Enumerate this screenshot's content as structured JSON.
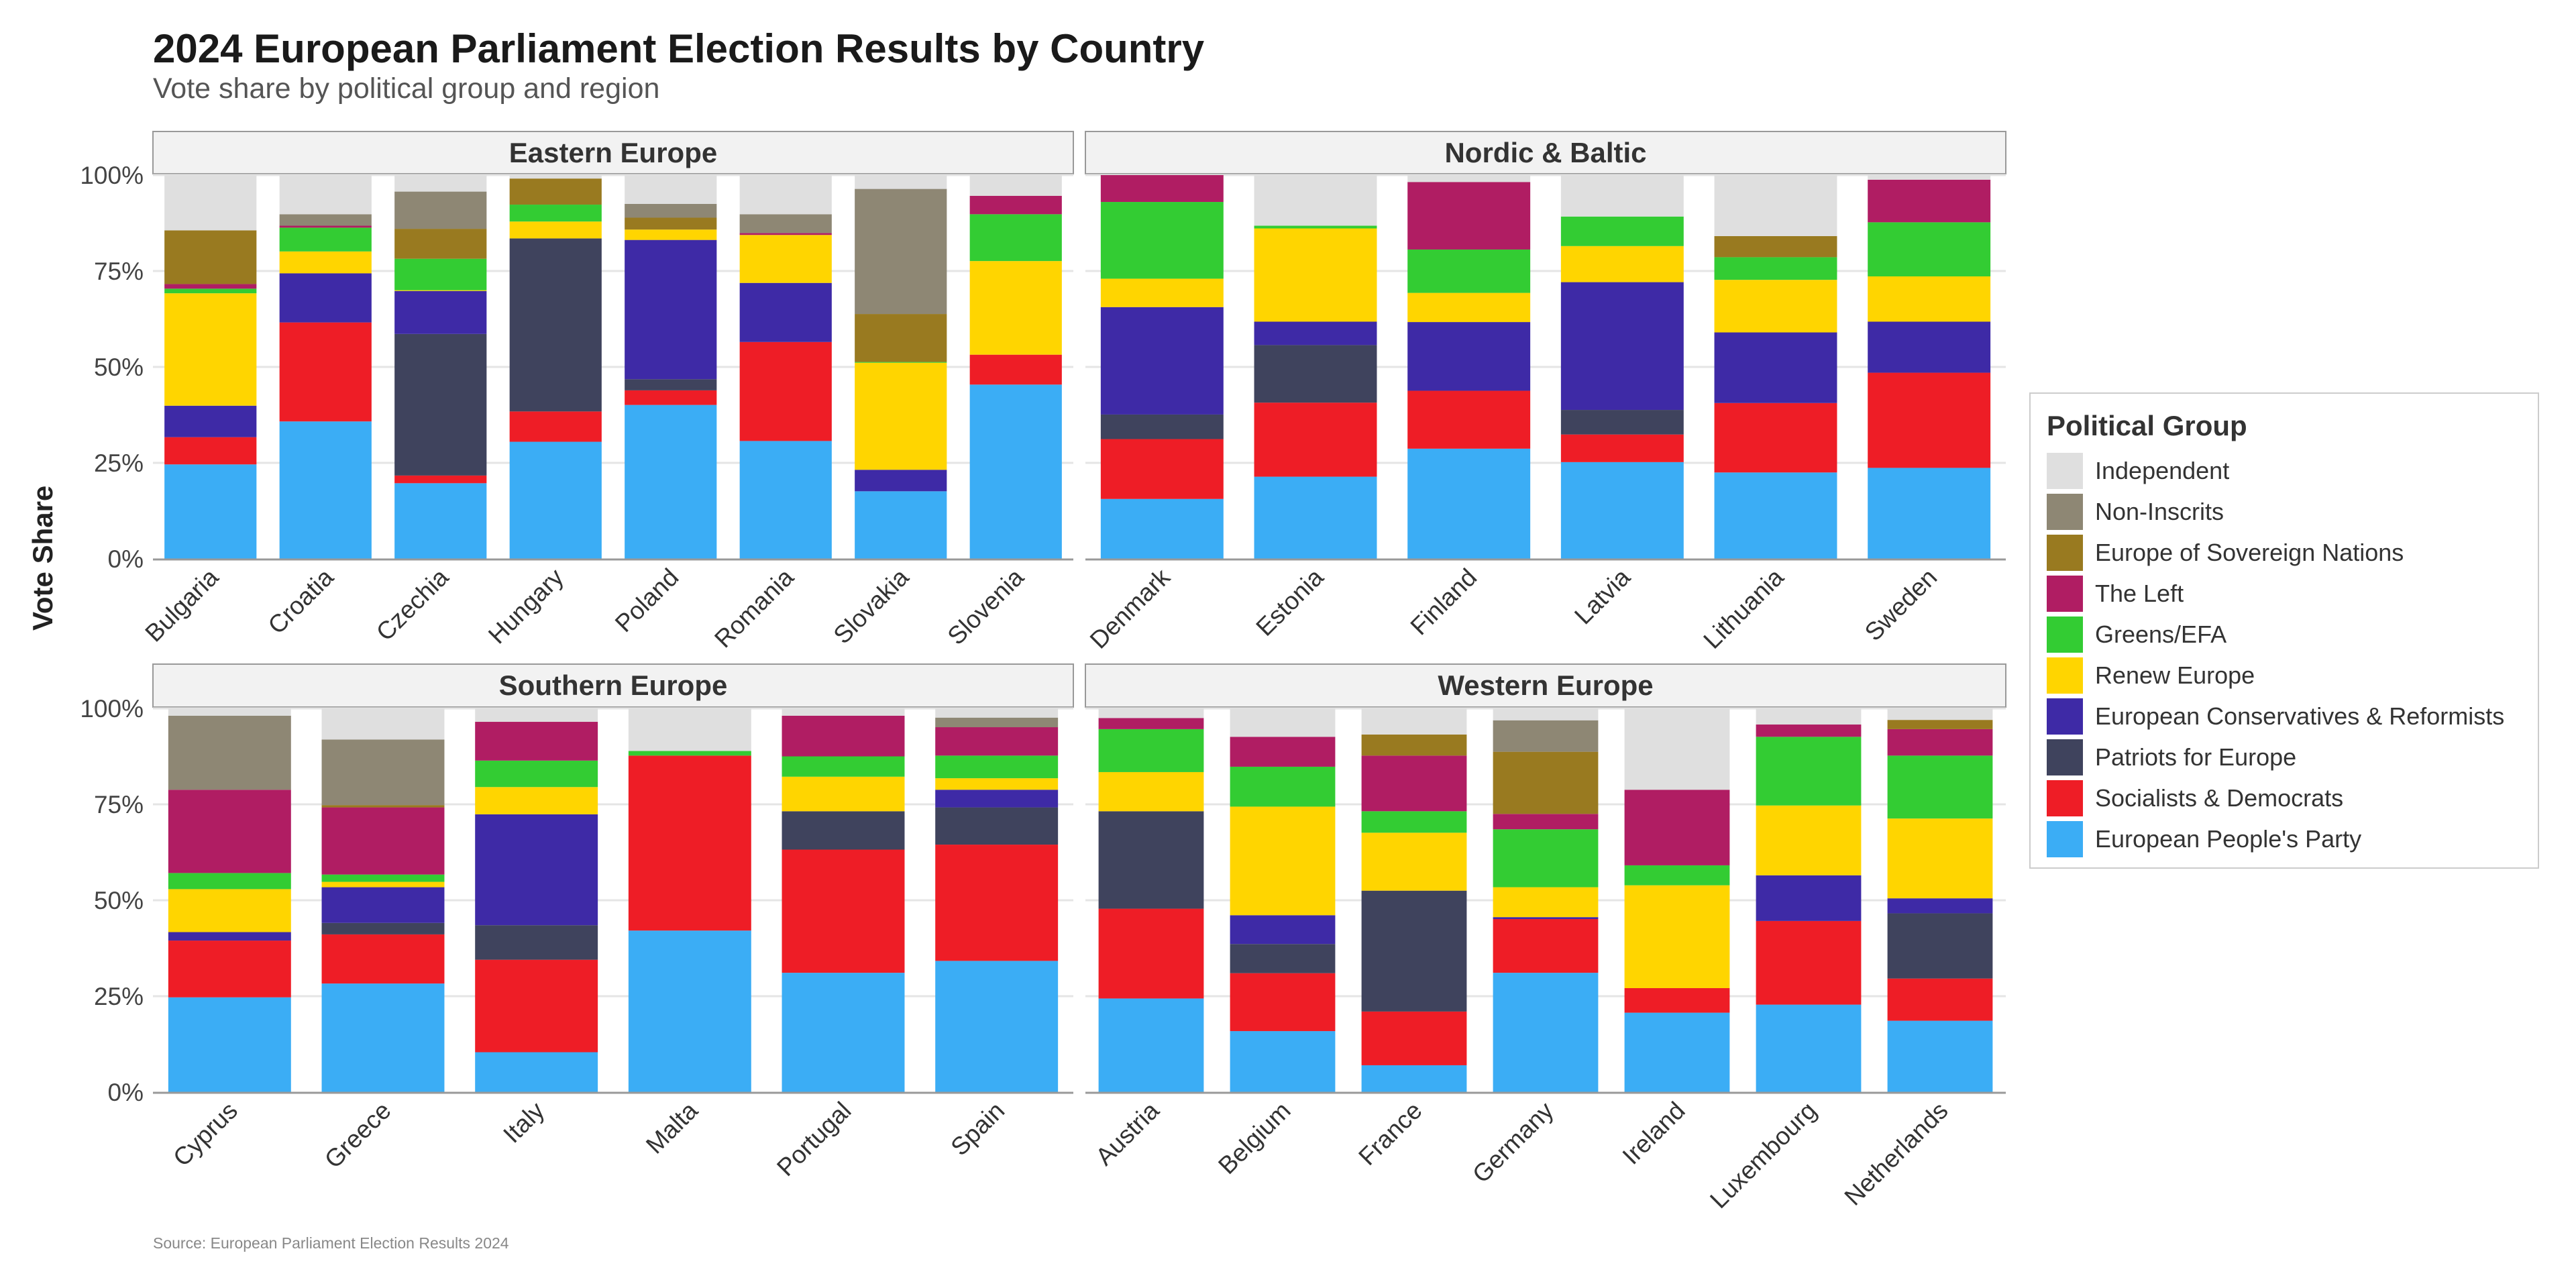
{
  "title": "2024 European Parliament Election Results by Country",
  "subtitle": "Vote share by political group and region",
  "source": "Source: European Parliament Election Results 2024",
  "chart_data": {
    "type": "bar",
    "stacked": true,
    "title": "2024 European Parliament Election Results by Country",
    "subtitle": "Vote share by political group and region",
    "xlabel": "",
    "ylabel": "Vote Share",
    "ylim": [
      0,
      100
    ],
    "yticks": [
      "0%",
      "25%",
      "50%",
      "75%",
      "100%"
    ],
    "grid": true,
    "legend": {
      "title": "Political Group",
      "placement": "right"
    },
    "groups": [
      {
        "name": "European People's Party",
        "color": "#3BADF5"
      },
      {
        "name": "Socialists & Democrats",
        "color": "#EE1D26"
      },
      {
        "name": "Patriots for Europe",
        "color": "#3F435D"
      },
      {
        "name": "European Conservatives & Reformists",
        "color": "#3E2AA6"
      },
      {
        "name": "Renew Europe",
        "color": "#FFD500"
      },
      {
        "name": "Greens/EFA",
        "color": "#33CC33"
      },
      {
        "name": "The Left",
        "color": "#B01D63"
      },
      {
        "name": "Europe of Sovereign Nations",
        "color": "#997A20"
      },
      {
        "name": "Non-Inscrits",
        "color": "#8E8774"
      },
      {
        "name": "Independent",
        "color": "#DFDFDF"
      }
    ],
    "legend_order": [
      "Independent",
      "Non-Inscrits",
      "Europe of Sovereign Nations",
      "The Left",
      "Greens/EFA",
      "Renew Europe",
      "European Conservatives & Reformists",
      "Patriots for Europe",
      "Socialists & Democrats",
      "European People's Party"
    ],
    "panels": [
      {
        "region": "Eastern Europe",
        "countries": [
          "Bulgaria",
          "Croatia",
          "Czechia",
          "Hungary",
          "Poland",
          "Romania",
          "Slovakia",
          "Slovenia"
        ],
        "values": [
          [
            24.6,
            7.1,
            0,
            8.2,
            29.3,
            1.2,
            1.2,
            14.0,
            0,
            14.4
          ],
          [
            35.8,
            25.8,
            0,
            12.8,
            5.7,
            6.2,
            0.5,
            0,
            3.0,
            10.2
          ],
          [
            19.7,
            2.0,
            36.9,
            11.2,
            0.2,
            8.2,
            0,
            7.8,
            9.7,
            4.3
          ],
          [
            30.5,
            7.9,
            45.1,
            0,
            4.4,
            4.4,
            0,
            6.8,
            0,
            0.9
          ],
          [
            40.1,
            3.8,
            2.9,
            36.3,
            2.7,
            0,
            0,
            3.1,
            3.6,
            7.5
          ],
          [
            30.7,
            25.8,
            0,
            15.4,
            12.5,
            0,
            0.5,
            0,
            4.9,
            10.2
          ],
          [
            17.6,
            0,
            0,
            5.6,
            27.9,
            0.2,
            0,
            12.5,
            32.6,
            3.6
          ],
          [
            45.4,
            7.8,
            0,
            0,
            24.4,
            12.2,
            4.8,
            0,
            0,
            5.4
          ]
        ]
      },
      {
        "region": "Nordic & Baltic",
        "countries": [
          "Denmark",
          "Estonia",
          "Finland",
          "Latvia",
          "Lithuania",
          "Sweden"
        ],
        "values": [
          [
            15.6,
            15.6,
            6.4,
            28.0,
            7.4,
            20.0,
            7.0,
            0,
            0,
            0
          ],
          [
            21.4,
            19.3,
            15.0,
            6.1,
            24.3,
            0.7,
            0,
            0,
            0,
            13.2
          ],
          [
            28.7,
            15.1,
            0,
            17.9,
            7.6,
            11.3,
            17.6,
            0,
            0,
            1.8
          ],
          [
            25.2,
            7.2,
            6.4,
            33.3,
            9.4,
            7.7,
            0,
            0,
            0,
            10.8
          ],
          [
            22.5,
            18.1,
            0,
            18.4,
            13.7,
            5.9,
            0,
            5.5,
            0,
            15.9
          ],
          [
            23.7,
            24.8,
            0,
            13.3,
            11.8,
            14.1,
            11.1,
            0,
            0,
            1.2
          ]
        ]
      },
      {
        "region": "Southern Europe",
        "countries": [
          "Cyprus",
          "Greece",
          "Italy",
          "Malta",
          "Portugal",
          "Spain"
        ],
        "values": [
          [
            24.7,
            14.8,
            0,
            2.2,
            11.2,
            4.2,
            21.7,
            0,
            19.3,
            1.9
          ],
          [
            28.3,
            12.8,
            3.0,
            9.3,
            1.4,
            1.9,
            17.5,
            0.6,
            17.1,
            8.1
          ],
          [
            10.4,
            24.1,
            9.0,
            28.9,
            7.1,
            6.9,
            10.1,
            0,
            0,
            3.5
          ],
          [
            42.1,
            45.6,
            0,
            0,
            0,
            1.2,
            0,
            0,
            0,
            11.1
          ],
          [
            31.1,
            32.1,
            10.0,
            0,
            9.0,
            5.3,
            10.6,
            0,
            0,
            1.9
          ],
          [
            34.2,
            30.3,
            9.7,
            4.6,
            3.0,
            5.9,
            7.4,
            0,
            2.5,
            2.4
          ]
        ]
      },
      {
        "region": "Western Europe",
        "countries": [
          "Austria",
          "Belgium",
          "France",
          "Germany",
          "Ireland",
          "Luxembourg",
          "Netherlands"
        ],
        "values": [
          [
            24.4,
            23.4,
            25.4,
            0,
            10.2,
            11.2,
            2.9,
            0,
            0,
            2.5
          ],
          [
            15.9,
            15.1,
            7.6,
            7.5,
            28.3,
            10.4,
            7.8,
            0,
            0,
            7.4
          ],
          [
            7.0,
            14.0,
            31.5,
            0,
            15.1,
            5.6,
            14.5,
            5.5,
            0,
            6.8
          ],
          [
            31.1,
            14.0,
            0,
            0.5,
            7.8,
            15.1,
            4.0,
            16.2,
            8.2,
            3.1
          ],
          [
            20.7,
            6.4,
            0,
            0,
            26.8,
            5.2,
            19.7,
            0,
            0,
            21.2
          ],
          [
            22.8,
            21.8,
            0,
            11.9,
            18.2,
            17.9,
            3.2,
            0,
            0,
            4.2
          ],
          [
            18.6,
            11.0,
            17.0,
            3.9,
            20.8,
            16.4,
            6.9,
            2.4,
            0,
            3.0
          ]
        ]
      }
    ]
  }
}
